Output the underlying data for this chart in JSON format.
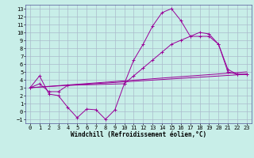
{
  "xlabel": "Windchill (Refroidissement éolien,°C)",
  "xlim": [
    -0.5,
    23.5
  ],
  "ylim": [
    -1.5,
    13.5
  ],
  "xticks": [
    0,
    1,
    2,
    3,
    4,
    5,
    6,
    7,
    8,
    9,
    10,
    11,
    12,
    13,
    14,
    15,
    16,
    17,
    18,
    19,
    20,
    21,
    22,
    23
  ],
  "yticks": [
    -1,
    0,
    1,
    2,
    3,
    4,
    5,
    6,
    7,
    8,
    9,
    10,
    11,
    12,
    13
  ],
  "background_color": "#c8eee8",
  "grid_color": "#aabbcc",
  "line_color": "#990099",
  "series": [
    {
      "x": [
        0,
        1,
        2,
        3,
        4,
        5,
        6,
        7,
        8,
        9,
        10,
        11,
        12,
        13,
        14,
        15,
        16,
        17,
        18,
        19,
        20,
        21,
        22,
        23
      ],
      "y": [
        3.0,
        4.5,
        2.2,
        2.0,
        0.5,
        -0.8,
        0.3,
        0.2,
        -1.0,
        0.2,
        3.5,
        6.5,
        8.5,
        10.8,
        12.5,
        13.0,
        11.5,
        9.5,
        9.5,
        9.5,
        8.5,
        5.3,
        4.7,
        4.7
      ],
      "marker": true
    },
    {
      "x": [
        0,
        1,
        2,
        3,
        4,
        10,
        11,
        12,
        13,
        14,
        15,
        16,
        17,
        18,
        19,
        20,
        21,
        22,
        23
      ],
      "y": [
        3.0,
        3.5,
        2.5,
        2.5,
        3.3,
        3.5,
        4.5,
        5.5,
        6.5,
        7.5,
        8.5,
        9.0,
        9.5,
        10.0,
        9.8,
        8.5,
        5.0,
        4.7,
        4.7
      ],
      "marker": true
    },
    {
      "x": [
        0,
        23
      ],
      "y": [
        3.0,
        4.7
      ],
      "marker": false
    },
    {
      "x": [
        0,
        23
      ],
      "y": [
        3.0,
        5.0
      ],
      "marker": false
    }
  ],
  "tick_fontsize": 5,
  "label_fontsize": 5.5
}
